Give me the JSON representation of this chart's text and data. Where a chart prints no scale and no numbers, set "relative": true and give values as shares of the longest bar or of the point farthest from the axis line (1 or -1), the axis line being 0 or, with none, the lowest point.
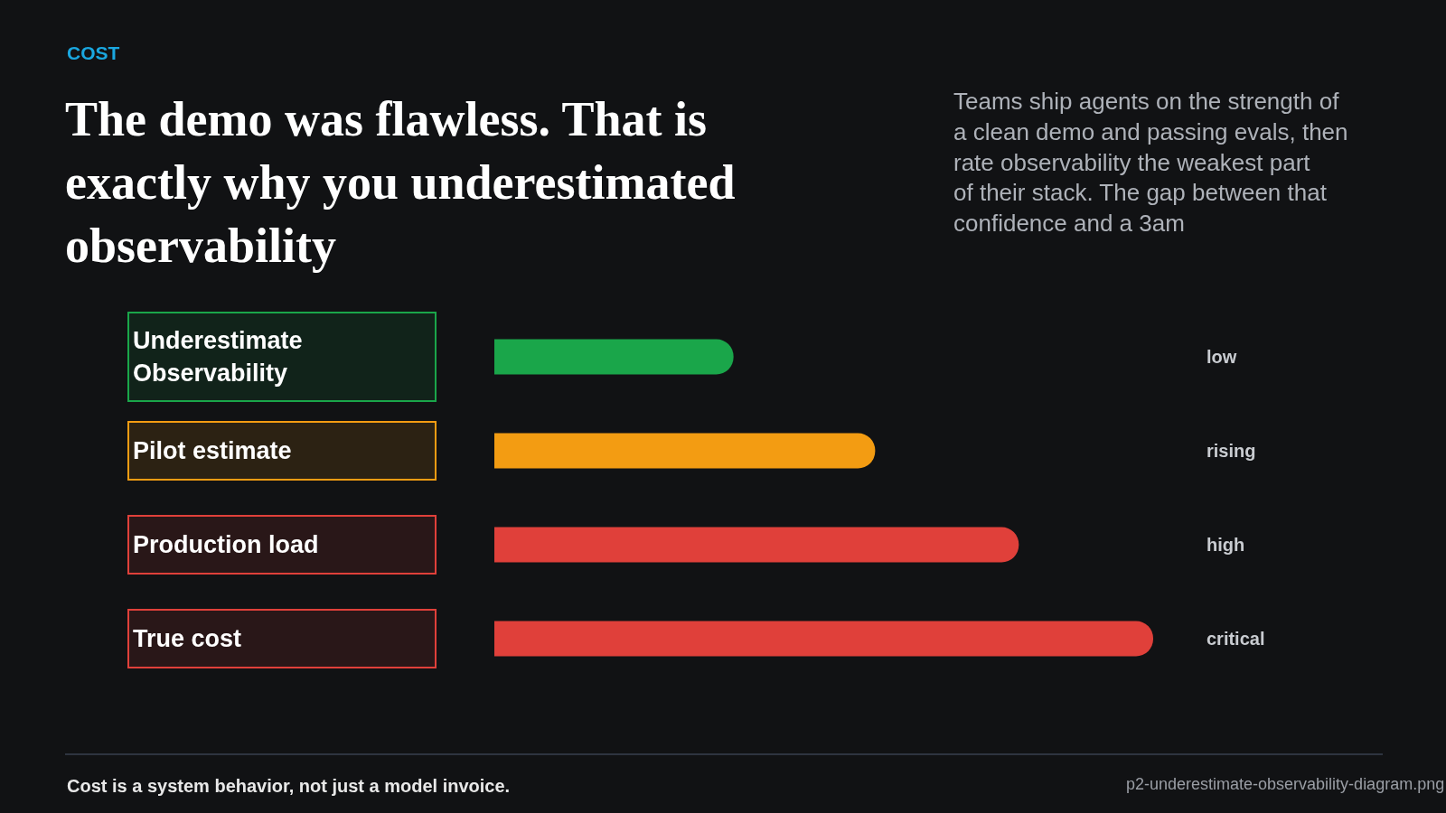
{
  "chart_data": {
    "type": "bar",
    "orientation": "horizontal",
    "relative": true,
    "title": "The demo was flawless. That is exactly why you underestimated observability",
    "subtitle": "Teams ship agents on the strength of a clean demo and passing evals, then rate observability the weakest part of their stack. The gap between that confidence and a 3am",
    "categories": [
      "Underestimate Observability",
      "Pilot estimate",
      "Production load",
      "True cost"
    ],
    "values": [
      0.363,
      0.578,
      0.796,
      1
    ],
    "colors": [
      "#1aa64a",
      "#f39c12",
      "#e0403a",
      "#e0403a"
    ],
    "annotations": [
      "COST",
      "Cost is a system behavior, not just a model invoice.",
      "p2-underestimate-observability-diagram.png",
      "low",
      "rising",
      "high",
      "critical"
    ],
    "legend": false
  }
}
